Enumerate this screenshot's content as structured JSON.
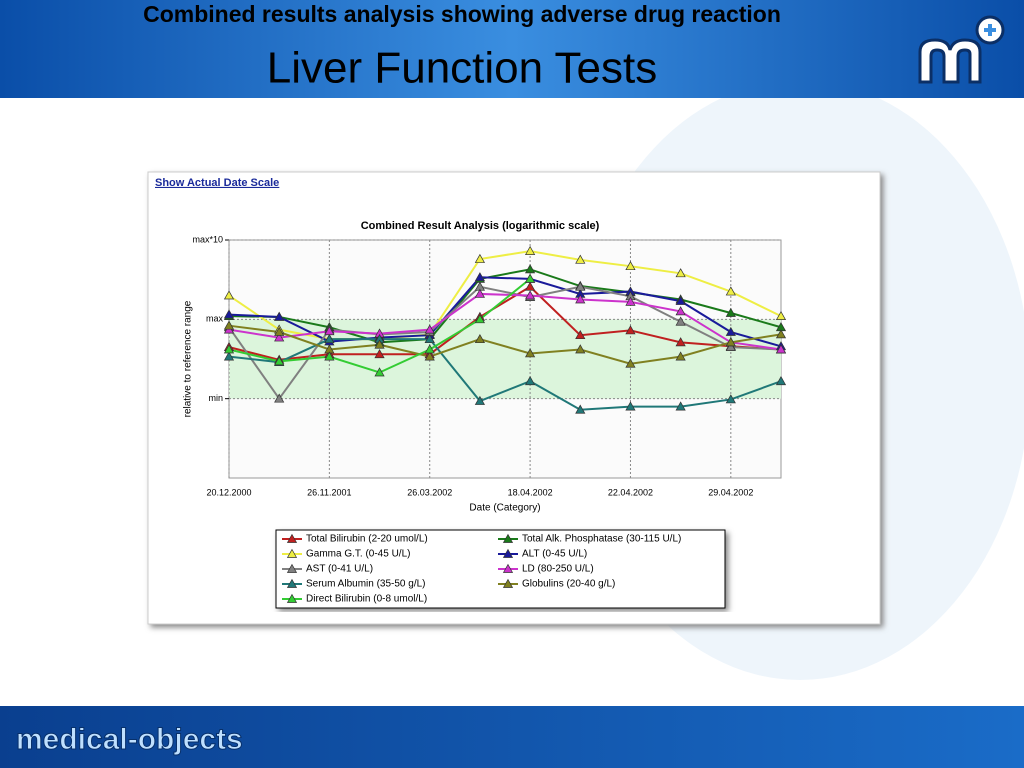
{
  "slide": {
    "heading": "Combined results analysis showing adverse drug reaction",
    "title": "Liver Function Tests",
    "link": "Show Actual Date Scale",
    "footer_logo": "medical-objects"
  },
  "chart_data": {
    "type": "line",
    "title": "Combined Result Analysis (logarithmic scale)",
    "x_label": "Date (Category)",
    "y_label": "relative to reference range",
    "categories": [
      "20.12.2000",
      null,
      "26.11.2001",
      null,
      "26.03.2002",
      null,
      "18.04.2002",
      null,
      "22.04.2002",
      null,
      "29.04.2002",
      null
    ],
    "ylim": [
      -1,
      2
    ],
    "yticks": [
      {
        "value": 0,
        "label": "min"
      },
      {
        "value": 1,
        "label": "max"
      },
      {
        "value": 2,
        "label": "max*10"
      }
    ],
    "reference_band": [
      0,
      1
    ],
    "grid": true,
    "legend": "bottom",
    "series": [
      {
        "name": "Total Bilirubin (2-20 umol/L)",
        "color": "#c02020",
        "values": [
          0.65,
          0.49,
          0.56,
          0.56,
          0.56,
          1.03,
          1.41,
          0.8,
          0.86,
          0.71,
          0.66,
          0.62
        ]
      },
      {
        "name": "Total Alk. Phosphatase (30-115 U/L)",
        "color": "#1a7a1a",
        "values": [
          1.04,
          1.03,
          0.9,
          0.71,
          0.75,
          1.51,
          1.63,
          1.42,
          1.34,
          1.25,
          1.08,
          0.9
        ]
      },
      {
        "name": "Gamma G.T. (0-45 U/L)",
        "color": "#eeee44",
        "values": [
          1.3,
          0.87,
          0.75,
          0.75,
          0.81,
          1.76,
          1.86,
          1.75,
          1.67,
          1.58,
          1.35,
          1.04
        ]
      },
      {
        "name": "ALT (0-45 U/L)",
        "color": "#1a1a9a",
        "values": [
          1.06,
          1.03,
          0.72,
          0.77,
          0.8,
          1.53,
          1.51,
          1.32,
          1.35,
          1.23,
          0.84,
          0.66
        ]
      },
      {
        "name": "AST (0-41 U/L)",
        "color": "#808080",
        "values": [
          0.9,
          0,
          0.87,
          0.81,
          0.84,
          1.41,
          1.28,
          1.41,
          1.29,
          0.97,
          0.65,
          0.62
        ]
      },
      {
        "name": "LD (80-250 U/L)",
        "color": "#cc33cc",
        "values": [
          0.87,
          0.77,
          0.85,
          0.82,
          0.87,
          1.32,
          1.3,
          1.25,
          1.22,
          1.1,
          0.71,
          0.62
        ]
      },
      {
        "name": "Serum Albumin (35-50 g/L)",
        "color": "#207878",
        "values": [
          0.53,
          0.46,
          0.75,
          0.75,
          0.75,
          -0.03,
          0.22,
          -0.14,
          -0.1,
          -0.1,
          -0.01,
          0.22
        ]
      },
      {
        "name": "Globulins (20-40 g/L)",
        "color": "#808020",
        "values": [
          0.92,
          0.84,
          0.62,
          0.68,
          0.53,
          0.75,
          0.57,
          0.62,
          0.44,
          0.53,
          0.71,
          0.81
        ]
      },
      {
        "name": "Direct Bilirubin (0-8 umol/L)",
        "color": "#33cc33",
        "values": [
          0.62,
          0.47,
          0.53,
          0.33,
          0.62,
          1.0,
          1.51,
          null,
          null,
          null,
          null,
          null
        ]
      }
    ]
  }
}
